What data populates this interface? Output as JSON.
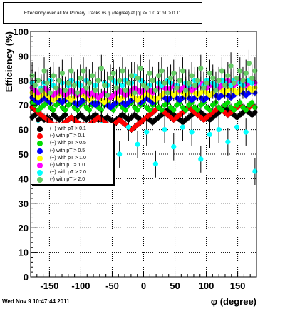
{
  "title": "Effeciency over all for Primary Tracks vs φ (degree) at |η| <= 1.0 at pT > 0.11",
  "timestamp": "Wed Nov  9 10:47:44 2011",
  "chart_data": {
    "type": "scatter",
    "xlabel": "φ (degree)",
    "ylabel": "Efficiency (%)",
    "xlim": [
      -180,
      180
    ],
    "ylim": [
      0,
      100
    ],
    "xticks": [
      -150,
      -100,
      -50,
      0,
      50,
      100,
      150
    ],
    "yticks": [
      0,
      10,
      20,
      30,
      40,
      50,
      60,
      70,
      80,
      90,
      100
    ],
    "grid": true,
    "legend_position": "left-middle",
    "series": [
      {
        "name": "(+) with pT > 0.1",
        "color": "#000000",
        "y": [
          65,
          66,
          64,
          65,
          64,
          65,
          64,
          66,
          65,
          64,
          65,
          66,
          64,
          65,
          64,
          65,
          66,
          65,
          64,
          65,
          65,
          66,
          64,
          65,
          64,
          65,
          64,
          63,
          64,
          65,
          66,
          65,
          64,
          65,
          66,
          65,
          64,
          64,
          65,
          64,
          63,
          64,
          65,
          66,
          67,
          68,
          67,
          66,
          65,
          64,
          63,
          64,
          65,
          66,
          67,
          68,
          67,
          66,
          65,
          64,
          65,
          66,
          67,
          68,
          69,
          68,
          67,
          66,
          65,
          66,
          67,
          68,
          67,
          66,
          67
        ]
      },
      {
        "name": "(-) with pT > 0.1",
        "color": "#ff0000",
        "y": [
          69,
          68,
          67,
          66,
          65,
          64,
          63,
          62,
          62,
          61,
          62,
          63,
          64,
          65,
          64,
          63,
          62,
          62,
          61,
          62,
          63,
          64,
          65,
          64,
          63,
          62,
          61,
          62,
          63,
          64,
          63,
          62,
          61,
          60,
          61,
          62,
          63,
          64,
          65,
          66,
          67,
          68,
          69,
          68,
          67,
          66,
          65,
          64,
          65,
          66,
          67,
          68,
          69,
          68,
          67,
          66,
          65,
          64,
          65,
          66,
          67,
          68,
          69,
          68,
          67,
          66,
          67,
          68,
          69,
          70,
          69,
          68,
          69,
          70,
          69
        ]
      },
      {
        "name": "(+) with pT > 0.5",
        "color": "#00dd00",
        "y": [
          71,
          70,
          68,
          69,
          70,
          71,
          69,
          68,
          70,
          71,
          69,
          68,
          70,
          71,
          69,
          68,
          70,
          71,
          69,
          68,
          70,
          71,
          69,
          68,
          70,
          71,
          69,
          68,
          70,
          71,
          69,
          68,
          70,
          71,
          69,
          68,
          70,
          71,
          69,
          68,
          70,
          71,
          69,
          68,
          70,
          71,
          69,
          68,
          70,
          71,
          69,
          68,
          70,
          71,
          69,
          68,
          70,
          71,
          69,
          68,
          70,
          71,
          69,
          68,
          70,
          71,
          69,
          68,
          70,
          71,
          69,
          68,
          70,
          71,
          69
        ]
      },
      {
        "name": "(-) with pT > 0.5",
        "color": "#0000ff",
        "y": [
          73,
          72,
          71,
          72,
          73,
          72,
          71,
          72,
          73,
          72,
          71,
          72,
          73,
          72,
          71,
          70,
          71,
          72,
          73,
          72,
          71,
          70,
          71,
          72,
          71,
          70,
          69,
          70,
          71,
          72,
          71,
          70,
          71,
          72,
          73,
          72,
          71,
          72,
          73,
          72,
          71,
          72,
          73,
          74,
          73,
          72,
          73,
          74,
          73,
          72,
          73,
          74,
          73,
          72,
          73,
          74,
          73,
          72,
          73,
          74,
          75,
          74,
          73,
          74,
          75,
          74,
          73,
          74,
          75,
          76,
          75,
          74,
          75,
          76,
          75
        ]
      },
      {
        "name": "(+) with pT > 1.0",
        "color": "#ffff00",
        "y": [
          75,
          74,
          73,
          74,
          75,
          74,
          73,
          72,
          73,
          74,
          75,
          74,
          73,
          72,
          73,
          74,
          75,
          74,
          73,
          72,
          73,
          74,
          73,
          72,
          71,
          72,
          73,
          74,
          73,
          72,
          73,
          74,
          75,
          74,
          73,
          72,
          73,
          74,
          75,
          74,
          73,
          72,
          73,
          74,
          75,
          76,
          75,
          74,
          75,
          76,
          75,
          74,
          75,
          76,
          75,
          74,
          75,
          76,
          75,
          74,
          75,
          76,
          77,
          76,
          75,
          76,
          77,
          76,
          75,
          76,
          77,
          78,
          77,
          76,
          77
        ]
      },
      {
        "name": "(-) with pT > 1.0",
        "color": "#ff00ff",
        "y": [
          77,
          76,
          75,
          76,
          77,
          76,
          75,
          74,
          75,
          76,
          75,
          74,
          75,
          76,
          75,
          74,
          75,
          76,
          75,
          74,
          75,
          74,
          73,
          74,
          75,
          74,
          73,
          74,
          75,
          76,
          75,
          74,
          75,
          76,
          77,
          76,
          75,
          76,
          77,
          76,
          75,
          76,
          77,
          78,
          77,
          76,
          77,
          78,
          77,
          76,
          77,
          78,
          77,
          76,
          77,
          78,
          79,
          78,
          77,
          78,
          79,
          78,
          77,
          78,
          79,
          80,
          79,
          78,
          79,
          80,
          79,
          78,
          79,
          80,
          79
        ]
      },
      {
        "name": "(+) with pT > 2.0",
        "color": "#00ffff",
        "y": [
          79,
          78,
          62,
          77,
          79,
          59,
          80,
          78,
          61,
          80,
          79,
          57,
          78,
          80,
          60,
          79,
          78,
          51,
          80,
          79,
          58,
          78,
          80,
          62,
          79,
          78,
          59,
          80,
          79,
          50,
          78,
          80,
          61,
          79,
          82,
          54,
          80,
          79,
          59,
          78,
          80,
          46,
          79,
          78,
          60,
          80,
          79,
          53,
          78,
          80,
          61,
          79,
          78,
          59,
          80,
          79,
          48,
          78,
          80,
          58,
          79,
          78,
          60,
          80,
          79,
          55,
          78,
          80,
          61,
          79,
          78,
          59,
          80,
          79,
          43
        ]
      },
      {
        "name": "(-) with pT > 2.0",
        "color": "#66cc66",
        "y": [
          82,
          78,
          80,
          76,
          84,
          79,
          75,
          82,
          77,
          80,
          83,
          76,
          79,
          84,
          78,
          75,
          81,
          84,
          77,
          79,
          82,
          76,
          80,
          85,
          78,
          74,
          81,
          83,
          77,
          80,
          84,
          76,
          79,
          82,
          75,
          81,
          85,
          78,
          77,
          83,
          80,
          76,
          82,
          84,
          79,
          75,
          81,
          83,
          77,
          80,
          84,
          76,
          79,
          82,
          78,
          80,
          85,
          77,
          79,
          83,
          81,
          76,
          80,
          84,
          78,
          82,
          86,
          79,
          81,
          84,
          80,
          83,
          87,
          81,
          84
        ]
      }
    ]
  }
}
